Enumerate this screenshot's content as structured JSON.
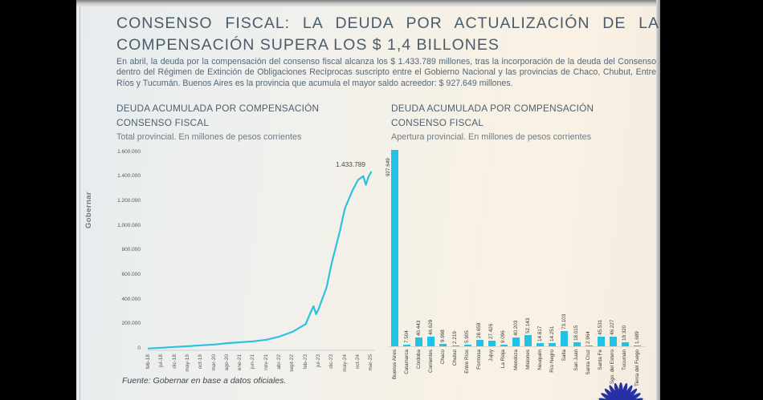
{
  "slide": {
    "title": "CONSENSO FISCAL: LA DEUDA POR ACTUALIZACIÓN DE LA COMPENSACIÓN SUPERA LOS $ 1,4 BILLONES",
    "intro": "En abril, la deuda por la compensación del consenso fiscal alcanza los $ 1.433.789 millones, tras la incorporación de la deuda del Consenso dentro del Régimen de Extinción de Obligaciones Recíprocas suscripto entre el Gobierno Nacional y las provincias de Chaco, Chubut, Entre Ríos y Tucumán. Buenos Aires es la provincia que acumula el mayor saldo acreedor: $ 927.649 millones.",
    "watermark": "Gobernar",
    "source": "Fuente: Gobernar en base a datos oficiales.",
    "logo": "gobernar-starburst-logo"
  },
  "colors": {
    "accent_cyan": "#2fc0de",
    "bar_cyan": "#22c2e6",
    "title_text": "#4b5c6b",
    "body_text": "#53677a",
    "logo_navy": "#2531a5"
  },
  "chart_data": [
    {
      "type": "line",
      "title": "DEUDA ACUMULADA POR COMPENSACIÓN CONSENSO FISCAL",
      "subtitle": "Total provincial. En millones de pesos corrientes",
      "ylabel": "millones de pesos corrientes",
      "ylim": [
        0,
        1600000
      ],
      "ytick_labels": [
        "1.600.000",
        "1.400.000",
        "1.200.000",
        "1.000.000",
        "800.000",
        "600.000",
        "400.000",
        "200.000",
        "0"
      ],
      "xtick_labels": [
        "feb-18",
        "jul-18",
        "dic-18",
        "may-19",
        "oct-19",
        "mar-20",
        "ago-20",
        "ene-21",
        "jun-21",
        "nov-21",
        "abr-22",
        "sept-22",
        "feb-23",
        "jul-23",
        "dic-23",
        "may-24",
        "oct-24",
        "mar-25"
      ],
      "months_per_xtick": 5,
      "end_point_label": "1.433.789",
      "end_point_value": 1433789,
      "grid": false,
      "legend_position": "none",
      "values_estimated_from_pixels": true,
      "series": [
        {
          "name": "Deuda acumulada por compensación consenso fiscal",
          "points": [
            {
              "x": "feb-18",
              "i": 0,
              "v": 2000
            },
            {
              "x": "jul-18",
              "i": 5,
              "v": 8000
            },
            {
              "x": "dic-18",
              "i": 10,
              "v": 14000
            },
            {
              "x": "may-19",
              "i": 15,
              "v": 20000
            },
            {
              "x": "oct-19",
              "i": 20,
              "v": 27000
            },
            {
              "x": "mar-20",
              "i": 25,
              "v": 34000
            },
            {
              "x": "ago-20",
              "i": 30,
              "v": 45000
            },
            {
              "x": "ene-21",
              "i": 35,
              "v": 52000
            },
            {
              "x": "jun-21",
              "i": 40,
              "v": 60000
            },
            {
              "x": "nov-21",
              "i": 45,
              "v": 73000
            },
            {
              "x": "abr-22",
              "i": 50,
              "v": 98000
            },
            {
              "x": "sept-22",
              "i": 55,
              "v": 137000
            },
            {
              "x": "feb-23",
              "i": 60,
              "v": 200000
            },
            {
              "x": "abr-23",
              "i": 62,
              "v": 300000
            },
            {
              "x": "may-23",
              "i": 63,
              "v": 345000
            },
            {
              "x": "jun-23",
              "i": 64,
              "v": 280000
            },
            {
              "x": "jul-23",
              "i": 65,
              "v": 325000
            },
            {
              "x": "oct-23",
              "i": 68,
              "v": 500000
            },
            {
              "x": "dic-23",
              "i": 70,
              "v": 700000
            },
            {
              "x": "mar-24",
              "i": 73,
              "v": 950000
            },
            {
              "x": "may-24",
              "i": 75,
              "v": 1140000
            },
            {
              "x": "ago-24",
              "i": 78,
              "v": 1290000
            },
            {
              "x": "oct-24",
              "i": 80,
              "v": 1370000
            },
            {
              "x": "dic-24",
              "i": 82,
              "v": 1400000
            },
            {
              "x": "ene-25",
              "i": 83,
              "v": 1330000
            },
            {
              "x": "feb-25",
              "i": 84,
              "v": 1395000
            },
            {
              "x": "mar-25",
              "i": 85,
              "v": 1433789
            }
          ]
        }
      ]
    },
    {
      "type": "bar",
      "title": "DEUDA ACUMULADA POR COMPENSACIÓN CONSENSO FISCAL",
      "subtitle": "Apertura provincial. En millones de pesos corrientes",
      "ylabel": "millones de pesos corrientes",
      "grid": false,
      "legend_position": "none",
      "categories": [
        "Buenos Aires",
        "Catamarca",
        "Córdoba",
        "Corrientes",
        "Chaco",
        "Chubut",
        "Entre Ríos",
        "Formosa",
        "Jujuy",
        "La Rioja",
        "Mendoza",
        "Misiones",
        "Neuquén",
        "Río Negro",
        "Salta",
        "San Juan",
        "Santa Cruz",
        "Santa Fe",
        "Sgo. del Estero",
        "Tucumán",
        "Tierra del Fuego"
      ],
      "values": [
        927649,
        7504,
        40443,
        46629,
        9998,
        2219,
        5905,
        28659,
        27426,
        9096,
        40203,
        52143,
        14817,
        14251,
        73103,
        18015,
        2964,
        45531,
        46227,
        19320,
        1689
      ],
      "value_labels": [
        "927.649",
        "7.504",
        "40.443",
        "46.629",
        "9.998",
        "2.219",
        "5.905",
        "28.659",
        "27.426",
        "9.096",
        "40.203",
        "52.143",
        "14.817",
        "14.251",
        "73.103",
        "18.015",
        "2.964",
        "45.531",
        "46.227",
        "19.320",
        "1.689"
      ]
    }
  ]
}
